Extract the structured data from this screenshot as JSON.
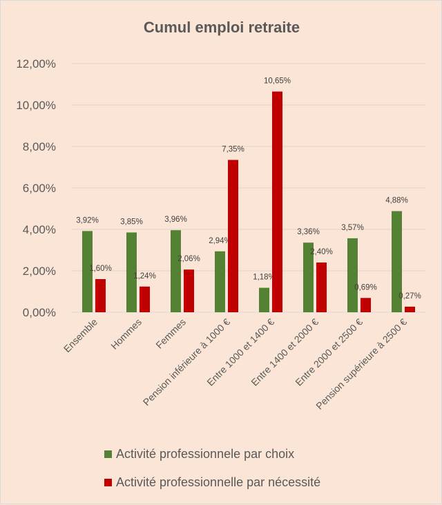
{
  "chart_data": {
    "type": "bar",
    "title": "Cumul emploi retraite",
    "xlabel": "",
    "ylabel": "",
    "ylim": [
      0,
      12
    ],
    "yticks": [
      "0,00%",
      "2,00%",
      "4,00%",
      "6,00%",
      "8,00%",
      "10,00%",
      "12,00%"
    ],
    "grid": true,
    "legend_position": "bottom",
    "categories": [
      "Ensemble",
      "Hommes",
      "Femmes",
      "Pension inférieure à 1000 €",
      "Entre 1000 et 1400 €",
      "Entre 1400 et 2000 €",
      "Entre 2000 et 2500 €",
      "Pension supérieure à 2500 €"
    ],
    "series": [
      {
        "name": "Activité professionnele par choix",
        "color": "#548235",
        "values": [
          3.92,
          3.85,
          3.96,
          2.94,
          1.18,
          3.36,
          3.57,
          4.88
        ],
        "labels": [
          "3,92%",
          "3,85%",
          "3,96%",
          "2,94%",
          "1,18%",
          "3,36%",
          "3,57%",
          "4,88%"
        ]
      },
      {
        "name": "Activité professionnelle par nécessité",
        "color": "#c00000",
        "values": [
          1.6,
          1.24,
          2.06,
          7.35,
          10.65,
          2.4,
          0.69,
          0.27
        ],
        "labels": [
          "1,60%",
          "1,24%",
          "2,06%",
          "7,35%",
          "10,65%",
          "2,40%",
          "0,69%",
          "0,27%"
        ]
      }
    ]
  }
}
